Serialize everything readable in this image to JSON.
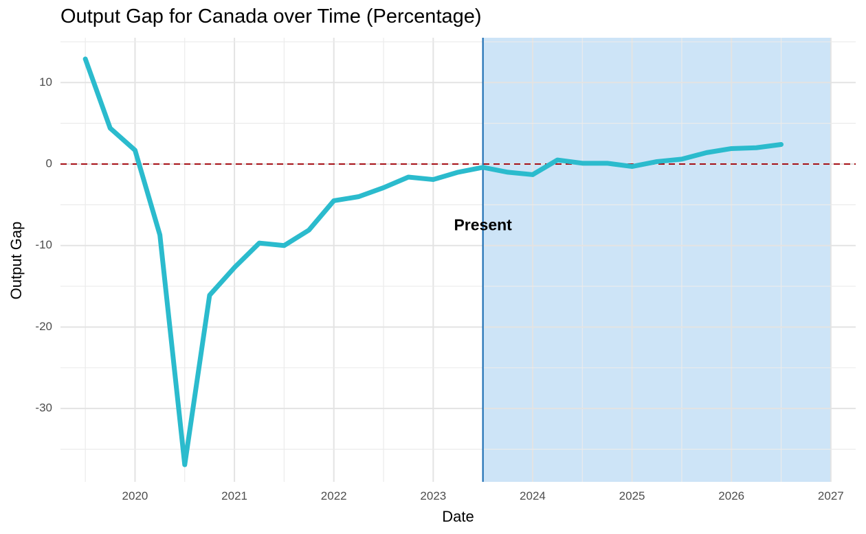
{
  "chart_data": {
    "type": "line",
    "title": "Output Gap for Canada over Time (Percentage)",
    "xlabel": "Date",
    "ylabel": "Output Gap",
    "x_ticks": [
      "2020",
      "2021",
      "2022",
      "2023",
      "2024",
      "2025",
      "2026",
      "2027"
    ],
    "y_ticks": [
      10,
      0,
      -10,
      -20,
      -30
    ],
    "ylim": [
      -39,
      15.5
    ],
    "xlim": [
      "2019-04-01",
      "2027-04-01"
    ],
    "grid": true,
    "series": [
      {
        "color": "#2bbbcd",
        "x": [
          "2019-07-01",
          "2019-10-01",
          "2020-01-01",
          "2020-04-01",
          "2020-07-01",
          "2020-10-01",
          "2021-01-01",
          "2021-04-01",
          "2021-07-01",
          "2021-10-01",
          "2022-01-01",
          "2022-04-01",
          "2022-07-01",
          "2022-10-01",
          "2023-01-01",
          "2023-04-01",
          "2023-07-01",
          "2023-10-01",
          "2024-01-01",
          "2024-04-01",
          "2024-07-01",
          "2024-10-01",
          "2025-01-01",
          "2025-04-01",
          "2025-07-01",
          "2025-10-01",
          "2026-01-01",
          "2026-04-01",
          "2026-07-01"
        ],
        "values": [
          12.9,
          4.4,
          1.7,
          -8.7,
          -36.9,
          -16.1,
          -12.7,
          -9.7,
          -10.0,
          -8.1,
          -4.5,
          -4.0,
          -2.9,
          -1.6,
          -1.9,
          -1.0,
          -0.4,
          -1.0,
          -1.3,
          0.5,
          0.1,
          0.1,
          -0.3,
          0.3,
          0.6,
          1.4,
          1.9,
          2.0,
          2.4
        ]
      }
    ],
    "reference_line": {
      "y": 0,
      "style": "dashed",
      "color": "#a50f15"
    },
    "present_marker": {
      "x": "2023-07-01",
      "label": "Present",
      "label_y": -7.6,
      "color": "#1f6fb4"
    },
    "forecast_region": {
      "from": "2023-07-01",
      "to": "2027-01-01",
      "color": "#cde4f7"
    }
  }
}
